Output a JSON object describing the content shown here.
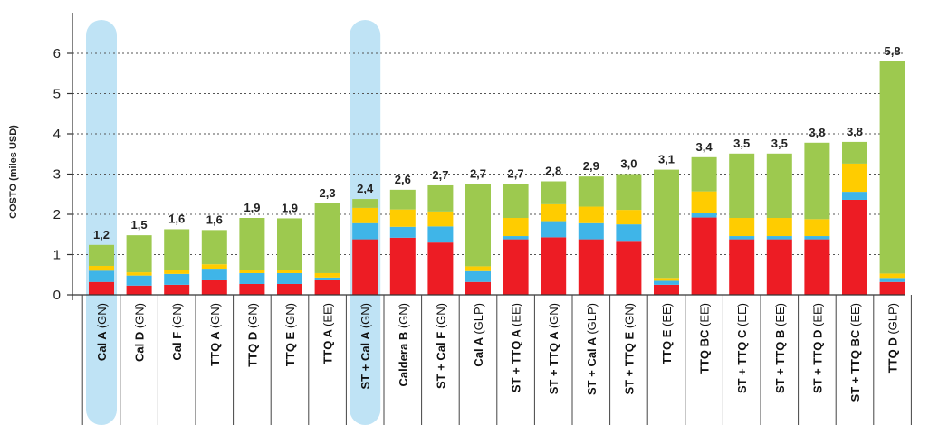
{
  "chart_data": {
    "type": "bar",
    "stacked": true,
    "ylabel": "COSTO (miles USD)",
    "ylim": [
      0,
      6.5
    ],
    "yticks": [
      0,
      1,
      2,
      3,
      4,
      5,
      6
    ],
    "grid": true,
    "highlighted_categories": [
      "Cal A (GN)",
      "ST + Cal A (GN)"
    ],
    "categories": [
      {
        "name": "Cal A",
        "suffix": "(GN)"
      },
      {
        "name": "Cal D",
        "suffix": "(GN)"
      },
      {
        "name": "Cal F",
        "suffix": "(GN)"
      },
      {
        "name": "TTQ A",
        "suffix": "(GN)"
      },
      {
        "name": "TTQ D",
        "suffix": "(GN)"
      },
      {
        "name": "TTQ E",
        "suffix": "(GN)"
      },
      {
        "name": "TTQ A",
        "suffix": "(EE)"
      },
      {
        "name": "ST + Cal A",
        "suffix": "(GN)"
      },
      {
        "name": "Caldera B",
        "suffix": "(GN)"
      },
      {
        "name": "ST + Cal F",
        "suffix": "(GN)"
      },
      {
        "name": "Cal A",
        "suffix": "(GLP)"
      },
      {
        "name": "ST + TTQ A",
        "suffix": "(EE)"
      },
      {
        "name": "ST + TTQ A",
        "suffix": "(GN)"
      },
      {
        "name": "ST + Cal A",
        "suffix": "(GLP)"
      },
      {
        "name": "ST + TTQ E",
        "suffix": "(GN)"
      },
      {
        "name": "TTQ E",
        "suffix": "(EE)"
      },
      {
        "name": "TTQ BC",
        "suffix": "(EE)"
      },
      {
        "name": "ST + TTQ C",
        "suffix": "(EE)"
      },
      {
        "name": "ST + TTQ B",
        "suffix": "(EE)"
      },
      {
        "name": "ST + TTQ D",
        "suffix": "(EE)"
      },
      {
        "name": "ST + TTQ BC",
        "suffix": "(EE)"
      },
      {
        "name": "TTQ D",
        "suffix": "(GLP)"
      }
    ],
    "totals_labels": [
      "1,2",
      "1,5",
      "1,6",
      "1,6",
      "1,9",
      "1,9",
      "2,3",
      "2,4",
      "2,6",
      "2,7",
      "2,7",
      "2,7",
      "2,8",
      "2,9",
      "3,0",
      "3,1",
      "3,4",
      "3,5",
      "3,5",
      "3,8",
      "3,8",
      "5,8"
    ],
    "series": [
      {
        "color": "#ed1c24",
        "values": [
          0.32,
          0.23,
          0.25,
          0.36,
          0.27,
          0.27,
          0.36,
          1.38,
          1.42,
          1.3,
          0.32,
          1.38,
          1.43,
          1.38,
          1.32,
          0.25,
          1.92,
          1.38,
          1.38,
          1.38,
          2.36,
          0.32
        ]
      },
      {
        "color": "#3fb5e8",
        "values": [
          0.28,
          0.25,
          0.27,
          0.29,
          0.27,
          0.27,
          0.07,
          0.4,
          0.27,
          0.4,
          0.27,
          0.08,
          0.4,
          0.4,
          0.43,
          0.1,
          0.12,
          0.08,
          0.08,
          0.08,
          0.2,
          0.1
        ]
      },
      {
        "color": "#ffcc00",
        "values": [
          0.12,
          0.08,
          0.1,
          0.11,
          0.08,
          0.08,
          0.11,
          0.38,
          0.43,
          0.37,
          0.12,
          0.45,
          0.42,
          0.41,
          0.36,
          0.07,
          0.53,
          0.45,
          0.45,
          0.42,
          0.7,
          0.11
        ]
      },
      {
        "color": "#9dc94f",
        "values": [
          0.52,
          0.92,
          1.01,
          0.85,
          1.29,
          1.28,
          1.73,
          0.22,
          0.49,
          0.65,
          2.04,
          0.84,
          0.57,
          0.75,
          0.89,
          2.69,
          0.85,
          1.6,
          1.6,
          1.9,
          0.54,
          5.27
        ]
      }
    ]
  }
}
